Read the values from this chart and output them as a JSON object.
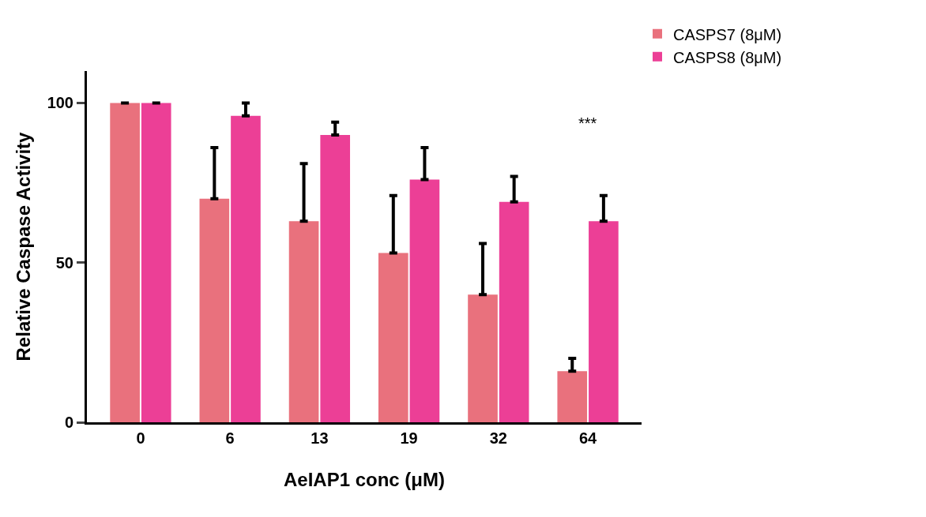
{
  "chart_data": {
    "type": "bar",
    "xlabel": "AeIAP1 conc (μM)",
    "ylabel": "Relative Caspase Activity",
    "categories": [
      "0",
      "6",
      "13",
      "19",
      "32",
      "64"
    ],
    "series": [
      {
        "name": "CASPS7 (8μM)",
        "color": "#e9717d",
        "values": [
          100,
          70,
          63,
          53,
          40,
          16
        ],
        "errors": [
          null,
          [
            70,
            86
          ],
          [
            63,
            81
          ],
          [
            53,
            71
          ],
          [
            40,
            56
          ],
          [
            16,
            20
          ]
        ]
      },
      {
        "name": "CASPS8 (8μM)",
        "color": "#ec3f96",
        "values": [
          100,
          96,
          90,
          76,
          69,
          63
        ],
        "errors": [
          null,
          [
            96,
            100
          ],
          [
            90,
            94
          ],
          [
            76,
            86
          ],
          [
            69,
            77
          ],
          [
            63,
            71
          ]
        ]
      }
    ],
    "annotations": [
      "***"
    ],
    "ylim": [
      0,
      110
    ],
    "yticks": [
      0,
      50,
      100
    ],
    "legend": "top right"
  }
}
